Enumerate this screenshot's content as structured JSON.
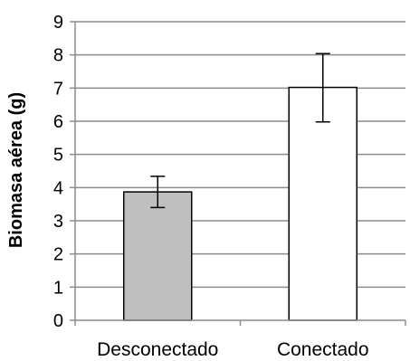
{
  "chart_data": {
    "type": "bar",
    "title": "",
    "xlabel": "",
    "ylabel": "Biomasa aérea (g)",
    "ylim": [
      0,
      9
    ],
    "yticks": [
      0,
      1,
      2,
      3,
      4,
      5,
      6,
      7,
      8,
      9
    ],
    "grid": true,
    "legend": "none",
    "categories": [
      "Desconectado",
      "Conectado"
    ],
    "values": [
      3.87,
      7.02
    ],
    "error_low": [
      3.4,
      5.98
    ],
    "error_high": [
      4.34,
      8.04
    ],
    "bar_colors": [
      "#bfbfbf",
      "#ffffff"
    ]
  }
}
